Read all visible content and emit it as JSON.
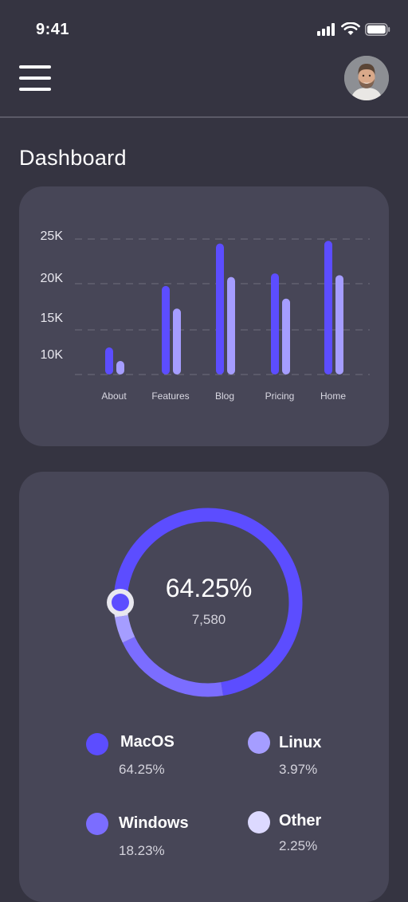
{
  "status_bar": {
    "time": "9:41",
    "icons": [
      "signal-icon",
      "wifi-icon",
      "battery-icon"
    ]
  },
  "header": {
    "menu_icon": "hamburger-menu-icon",
    "avatar": "user-avatar"
  },
  "page": {
    "title": "Dashboard"
  },
  "colors": {
    "background": "#353441",
    "card": "#474657",
    "primary": "#5c4dff",
    "secondary": "#a59dff",
    "pale": "#dcd9ff"
  },
  "chart_data": [
    {
      "type": "bar",
      "categories": [
        "About",
        "Features",
        "Blog",
        "Pricing",
        "Home"
      ],
      "series": [
        {
          "values": [
            13000,
            19800,
            24500,
            21200,
            24800
          ],
          "color": "#5c4dff"
        },
        {
          "values": [
            11500,
            17300,
            20800,
            18400,
            21000
          ],
          "color": "#a59dff"
        }
      ],
      "y_ticks": [
        "25K",
        "20K",
        "15K",
        "10K"
      ],
      "grid": true
    },
    {
      "type": "pie",
      "center_value": "64.25%",
      "center_subvalue": "7,580",
      "slices": [
        {
          "label": "MacOS",
          "value": 64.25,
          "display": "64.25%",
          "color": "#5c4dff"
        },
        {
          "label": "Linux",
          "value": 3.97,
          "display": "3.97%",
          "color": "#a59dff"
        },
        {
          "label": "Windows",
          "value": 18.23,
          "display": "18.23%",
          "color": "#7b6dff"
        },
        {
          "label": "Other",
          "value": 2.25,
          "display": "2.25%",
          "color": "#dcd9ff"
        }
      ]
    }
  ]
}
